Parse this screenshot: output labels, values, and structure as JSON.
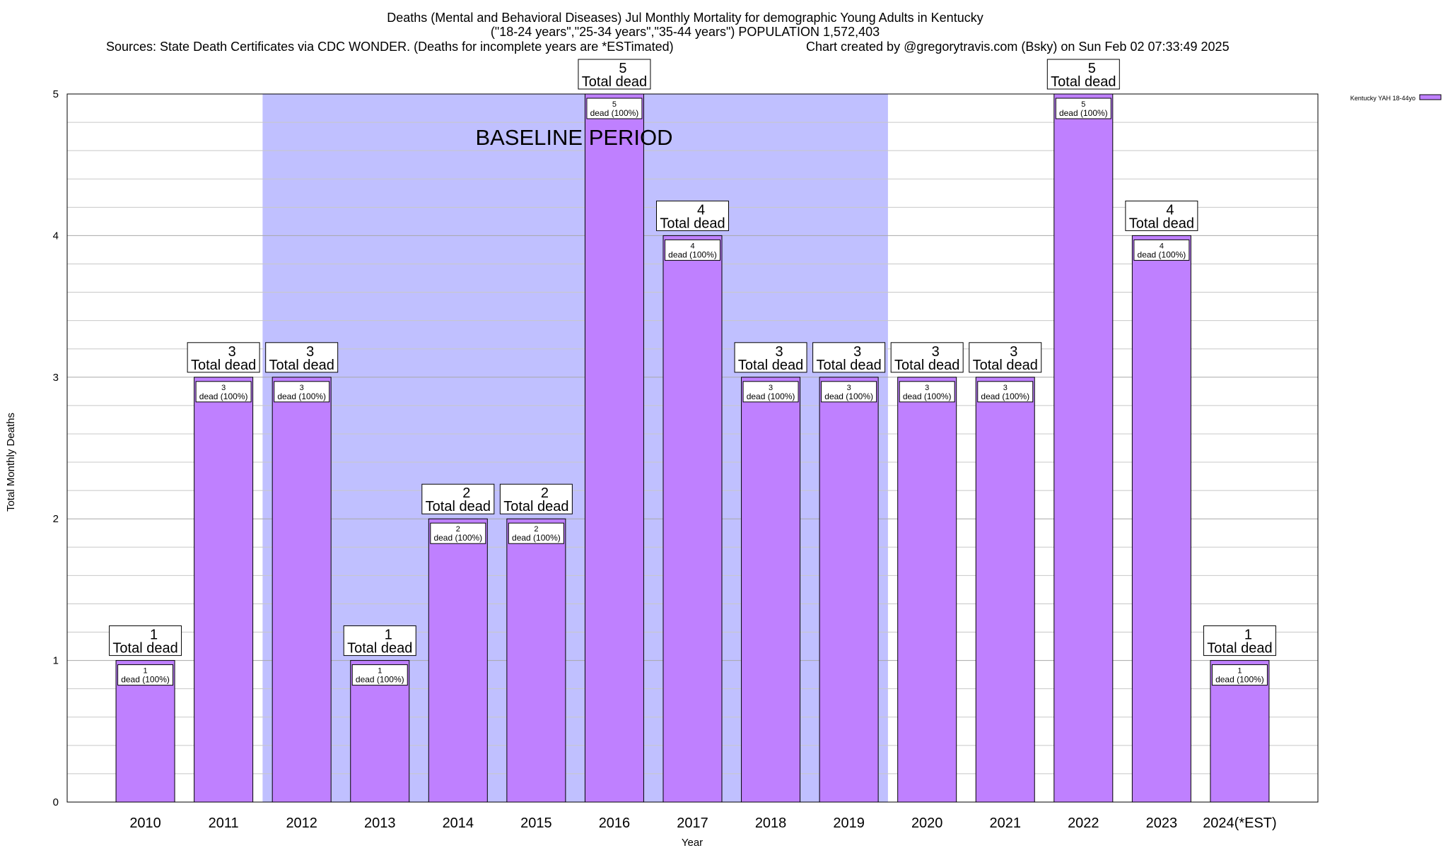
{
  "chart_data": {
    "type": "bar",
    "title_lines": [
      "Deaths (Mental and Behavioral Diseases) Jul Monthly Mortality for demographic Young Adults in Kentucky",
      "(\"18-24 years\",\"25-34 years\",\"35-44 years\") POPULATION 1,572,403"
    ],
    "source_left": "Sources: State Death Certificates via CDC WONDER. (Deaths for incomplete years are *ESTimated)",
    "source_right": "Chart created by @gregorytravis.com (Bsky) on Sun Feb 02 07:33:49 2025",
    "xlabel": "Year",
    "ylabel": "Total Monthly Deaths",
    "ylim": [
      0,
      5
    ],
    "yticks": [
      0,
      1,
      2,
      3,
      4,
      5
    ],
    "grid": true,
    "legend_position": "top-right",
    "categories": [
      "2010",
      "2011",
      "2012",
      "2013",
      "2014",
      "2015",
      "2016",
      "2017",
      "2018",
      "2019",
      "2020",
      "2021",
      "2022",
      "2023",
      "2024(*EST)"
    ],
    "series": [
      {
        "name": "Kentucky YAH 18-44yo",
        "color": "#bf80ff",
        "values": [
          1,
          3,
          3,
          1,
          2,
          2,
          5,
          4,
          3,
          3,
          3,
          3,
          5,
          4,
          1
        ]
      }
    ],
    "baseline": {
      "label": "BASELINE PERIOD",
      "from": "2012",
      "to": "2019",
      "color": "#c0c0ff"
    },
    "total_label_suffix": "Total dead",
    "inner_label_suffix": "dead (100%)"
  }
}
